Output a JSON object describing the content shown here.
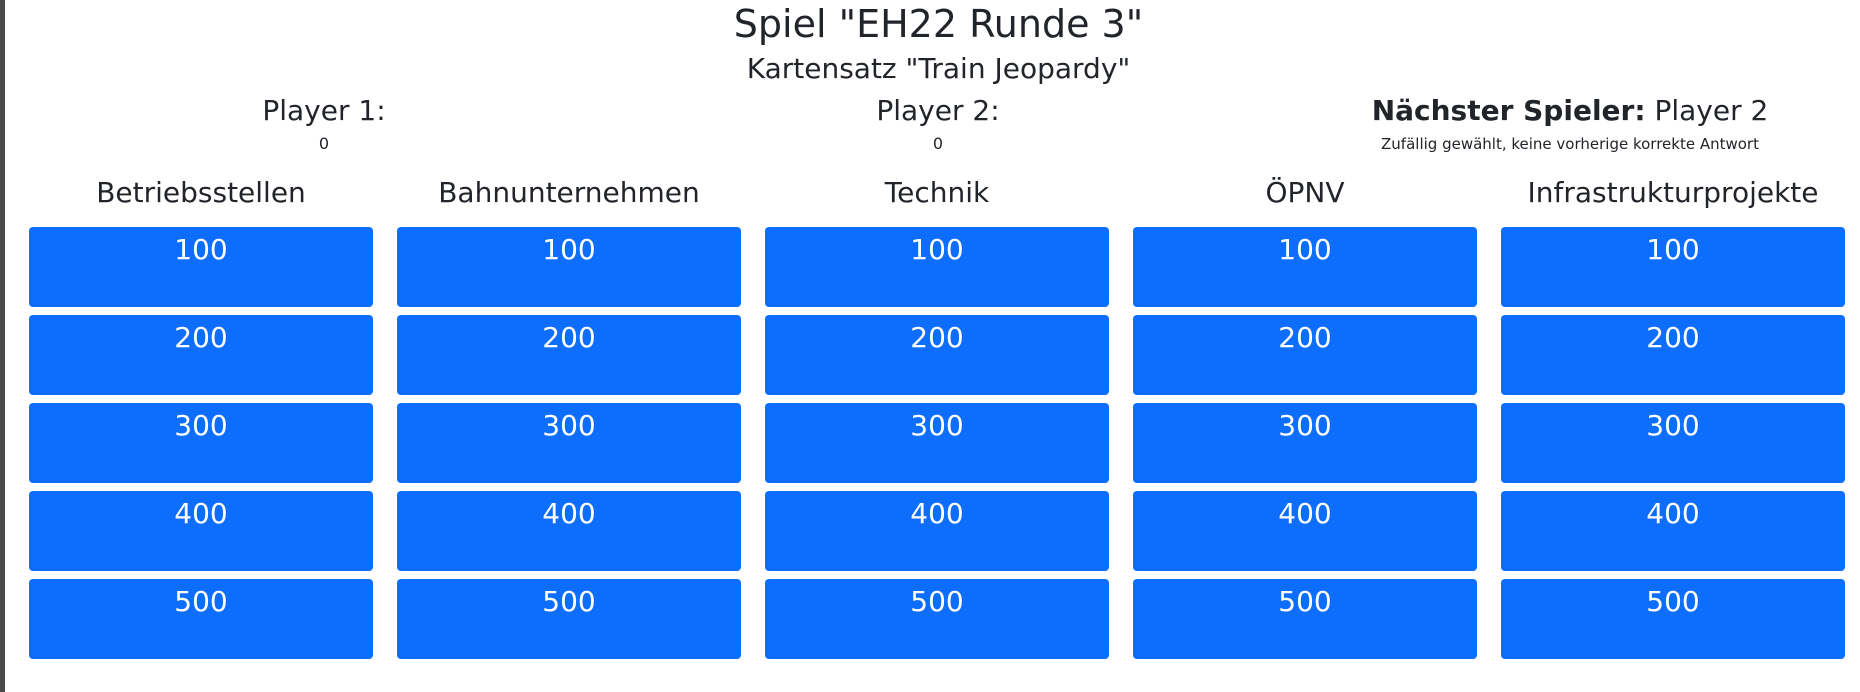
{
  "game": {
    "title": "Spiel \"EH22 Runde 3\"",
    "deck": "Kartensatz \"Train Jeopardy\""
  },
  "players": [
    {
      "name": "Player 1:",
      "score": "0"
    },
    {
      "name": "Player 2:",
      "score": "0"
    }
  ],
  "next_player": {
    "label": "Nächster Spieler:",
    "name": "Player 2",
    "reason": "Zufällig gewählt, keine vorherige korrekte Antwort"
  },
  "categories": [
    {
      "name": "Betriebsstellen",
      "values": [
        "100",
        "200",
        "300",
        "400",
        "500"
      ]
    },
    {
      "name": "Bahnunternehmen",
      "values": [
        "100",
        "200",
        "300",
        "400",
        "500"
      ]
    },
    {
      "name": "Technik",
      "values": [
        "100",
        "200",
        "300",
        "400",
        "500"
      ]
    },
    {
      "name": "ÖPNV",
      "values": [
        "100",
        "200",
        "300",
        "400",
        "500"
      ]
    },
    {
      "name": "Infrastrukturprojekte",
      "values": [
        "100",
        "200",
        "300",
        "400",
        "500"
      ]
    }
  ],
  "colors": {
    "card": "#0d6efd",
    "card_text": "#ffffff",
    "text": "#212529"
  }
}
